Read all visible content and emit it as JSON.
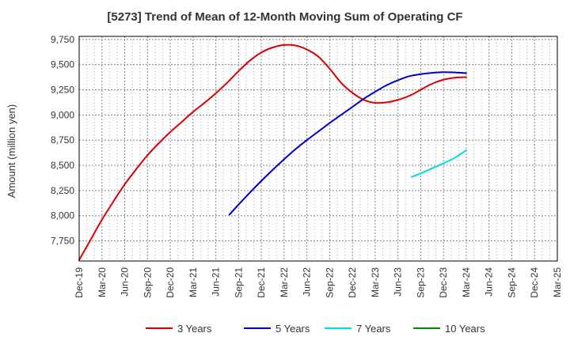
{
  "chart_data": {
    "type": "line",
    "title": "[5273]  Trend of Mean of 12-Month Moving Sum of Operating CF",
    "ylabel": "Amount (million yen)",
    "xlabel": "",
    "ylim": [
      7550,
      9780
    ],
    "yticks": [
      7750,
      8000,
      8250,
      8500,
      8750,
      9000,
      9250,
      9500,
      9750
    ],
    "ytick_labels": [
      "7,750",
      "8,000",
      "8,250",
      "8,500",
      "8,750",
      "9,000",
      "9,250",
      "9,500",
      "9,750"
    ],
    "x_tick_labels": [
      "Dec-19",
      "Mar-20",
      "Jun-20",
      "Sep-20",
      "Dec-20",
      "Mar-21",
      "Jun-21",
      "Sep-21",
      "Dec-21",
      "Mar-22",
      "Jun-22",
      "Sep-22",
      "Dec-22",
      "Mar-23",
      "Jun-23",
      "Sep-23",
      "Dec-23",
      "Mar-24",
      "Jun-24",
      "Sep-24",
      "Dec-24",
      "Mar-25"
    ],
    "grid": true,
    "legend_position": "bottom",
    "series": [
      {
        "name": "3 Years",
        "color": "#dd0000",
        "points": [
          [
            0,
            7560
          ],
          [
            0.5,
            7760
          ],
          [
            1,
            7960
          ],
          [
            1.5,
            8140
          ],
          [
            2,
            8310
          ],
          [
            2.5,
            8460
          ],
          [
            3,
            8600
          ],
          [
            3.5,
            8720
          ],
          [
            4,
            8830
          ],
          [
            4.5,
            8930
          ],
          [
            5,
            9030
          ],
          [
            5.5,
            9120
          ],
          [
            6,
            9215
          ],
          [
            6.5,
            9320
          ],
          [
            7,
            9435
          ],
          [
            7.5,
            9540
          ],
          [
            8,
            9620
          ],
          [
            8.5,
            9670
          ],
          [
            9,
            9695
          ],
          [
            9.5,
            9690
          ],
          [
            10,
            9650
          ],
          [
            10.5,
            9580
          ],
          [
            11,
            9460
          ],
          [
            11.5,
            9320
          ],
          [
            12,
            9220
          ],
          [
            12.5,
            9150
          ],
          [
            13,
            9120
          ],
          [
            13.5,
            9125
          ],
          [
            14,
            9150
          ],
          [
            14.5,
            9190
          ],
          [
            15,
            9250
          ],
          [
            15.5,
            9310
          ],
          [
            16,
            9350
          ],
          [
            16.5,
            9370
          ],
          [
            17,
            9375
          ]
        ]
      },
      {
        "name": "5 Years",
        "color": "#0000cc",
        "points": [
          [
            6.6,
            8010
          ],
          [
            7,
            8110
          ],
          [
            7.5,
            8230
          ],
          [
            8,
            8345
          ],
          [
            8.5,
            8455
          ],
          [
            9,
            8560
          ],
          [
            9.5,
            8660
          ],
          [
            10,
            8750
          ],
          [
            10.5,
            8835
          ],
          [
            11,
            8920
          ],
          [
            11.5,
            9000
          ],
          [
            12,
            9080
          ],
          [
            12.5,
            9160
          ],
          [
            13,
            9230
          ],
          [
            13.5,
            9295
          ],
          [
            14,
            9345
          ],
          [
            14.5,
            9385
          ],
          [
            15,
            9405
          ],
          [
            15.5,
            9418
          ],
          [
            16,
            9425
          ],
          [
            16.5,
            9422
          ],
          [
            17,
            9415
          ]
        ]
      },
      {
        "name": "7 Years",
        "color": "#00dddd",
        "points": [
          [
            14.6,
            8385
          ],
          [
            15,
            8420
          ],
          [
            15.5,
            8470
          ],
          [
            16,
            8520
          ],
          [
            16.5,
            8575
          ],
          [
            17,
            8650
          ]
        ]
      },
      {
        "name": "10 Years",
        "color": "#008800",
        "points": []
      }
    ]
  }
}
